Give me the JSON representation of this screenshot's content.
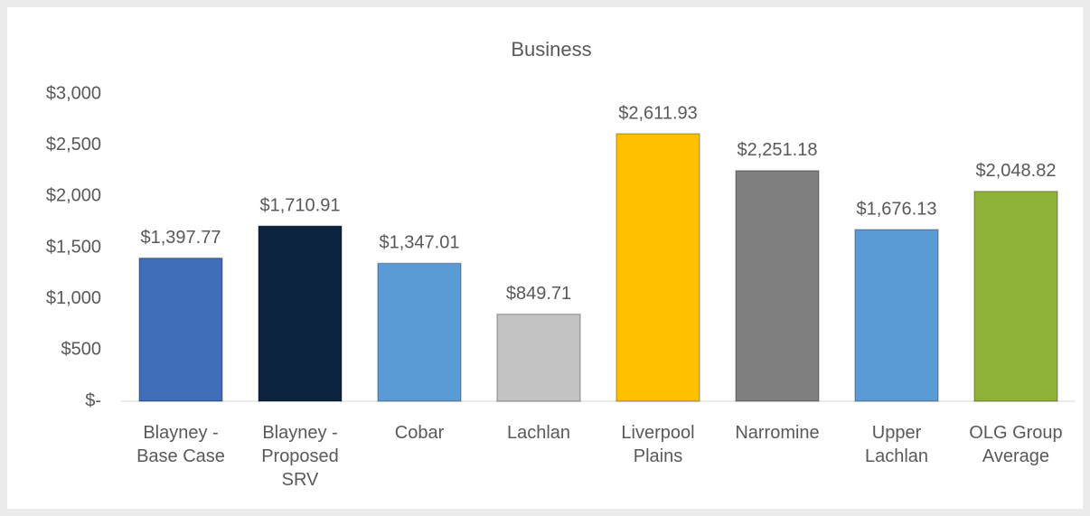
{
  "chart_data": {
    "type": "bar",
    "title": "Business",
    "categories": [
      "Blayney - Base Case",
      "Blayney - Proposed SRV",
      "Cobar",
      "Lachlan",
      "Liverpool Plains",
      "Narromine",
      "Upper Lachlan",
      "OLG Group Average"
    ],
    "values": [
      1397.77,
      1710.91,
      1347.01,
      849.71,
      2611.93,
      2251.18,
      1676.13,
      2048.82
    ],
    "value_labels": [
      "$1,397.77",
      "$1,710.91",
      "$1,347.01",
      "$849.71",
      "$2,611.93",
      "$2,251.18",
      "$1,676.13",
      "$2,048.82"
    ],
    "colors": [
      "#3f6db7",
      "#0c2340",
      "#5b9bd5",
      "#c3c3c3",
      "#ffc000",
      "#7f7f7f",
      "#5b9bd5",
      "#8fb338"
    ],
    "ylim": [
      0,
      3000
    ],
    "yticks": [
      {
        "value": 0,
        "label": "$-"
      },
      {
        "value": 500,
        "label": "$500"
      },
      {
        "value": 1000,
        "label": "$1,000"
      },
      {
        "value": 1500,
        "label": "$1,500"
      },
      {
        "value": 2000,
        "label": "$2,000"
      },
      {
        "value": 2500,
        "label": "$2,500"
      },
      {
        "value": 3000,
        "label": "$3,000"
      }
    ],
    "grid": false
  }
}
